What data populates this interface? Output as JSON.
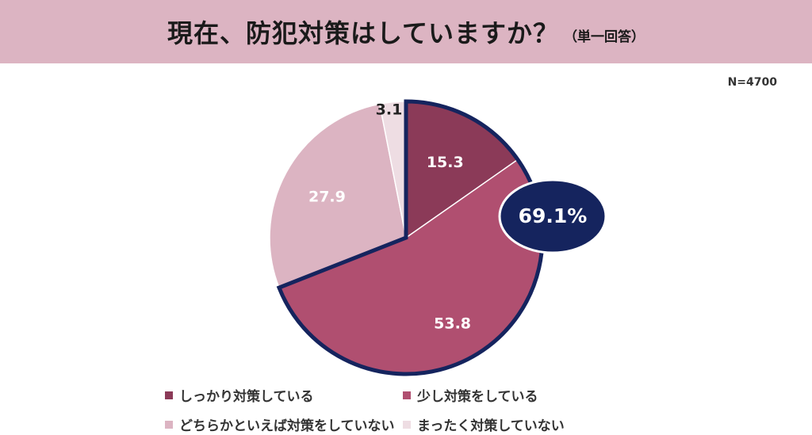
{
  "header": {
    "title": "現在、防犯対策はしていますか？",
    "note": "（単一回答）"
  },
  "sample_size": "N=4700",
  "chart_data": {
    "type": "pie",
    "title": "現在、防犯対策はしていますか？",
    "categories": [
      "しっかり対策している",
      "少し対策をしている",
      "どちらかといえば対策をしていない",
      "まったく対策していない"
    ],
    "values": [
      15.3,
      53.8,
      27.9,
      3.1
    ],
    "value_labels": [
      "15.3",
      "53.8",
      "27.9",
      "3.1"
    ],
    "colors": [
      "#8b3a58",
      "#b04f70",
      "#dcb4c2",
      "#eedde3"
    ],
    "label_colors": [
      "#ffffff",
      "#ffffff",
      "#ffffff",
      "#222222"
    ],
    "start_angle": "12 o'clock, clockwise",
    "highlight": {
      "label": "69.1%",
      "value": 69.1,
      "includes": [
        "しっかり対策している",
        "少し対策をしている"
      ],
      "color": "#15245e"
    },
    "legend_position": "bottom"
  }
}
